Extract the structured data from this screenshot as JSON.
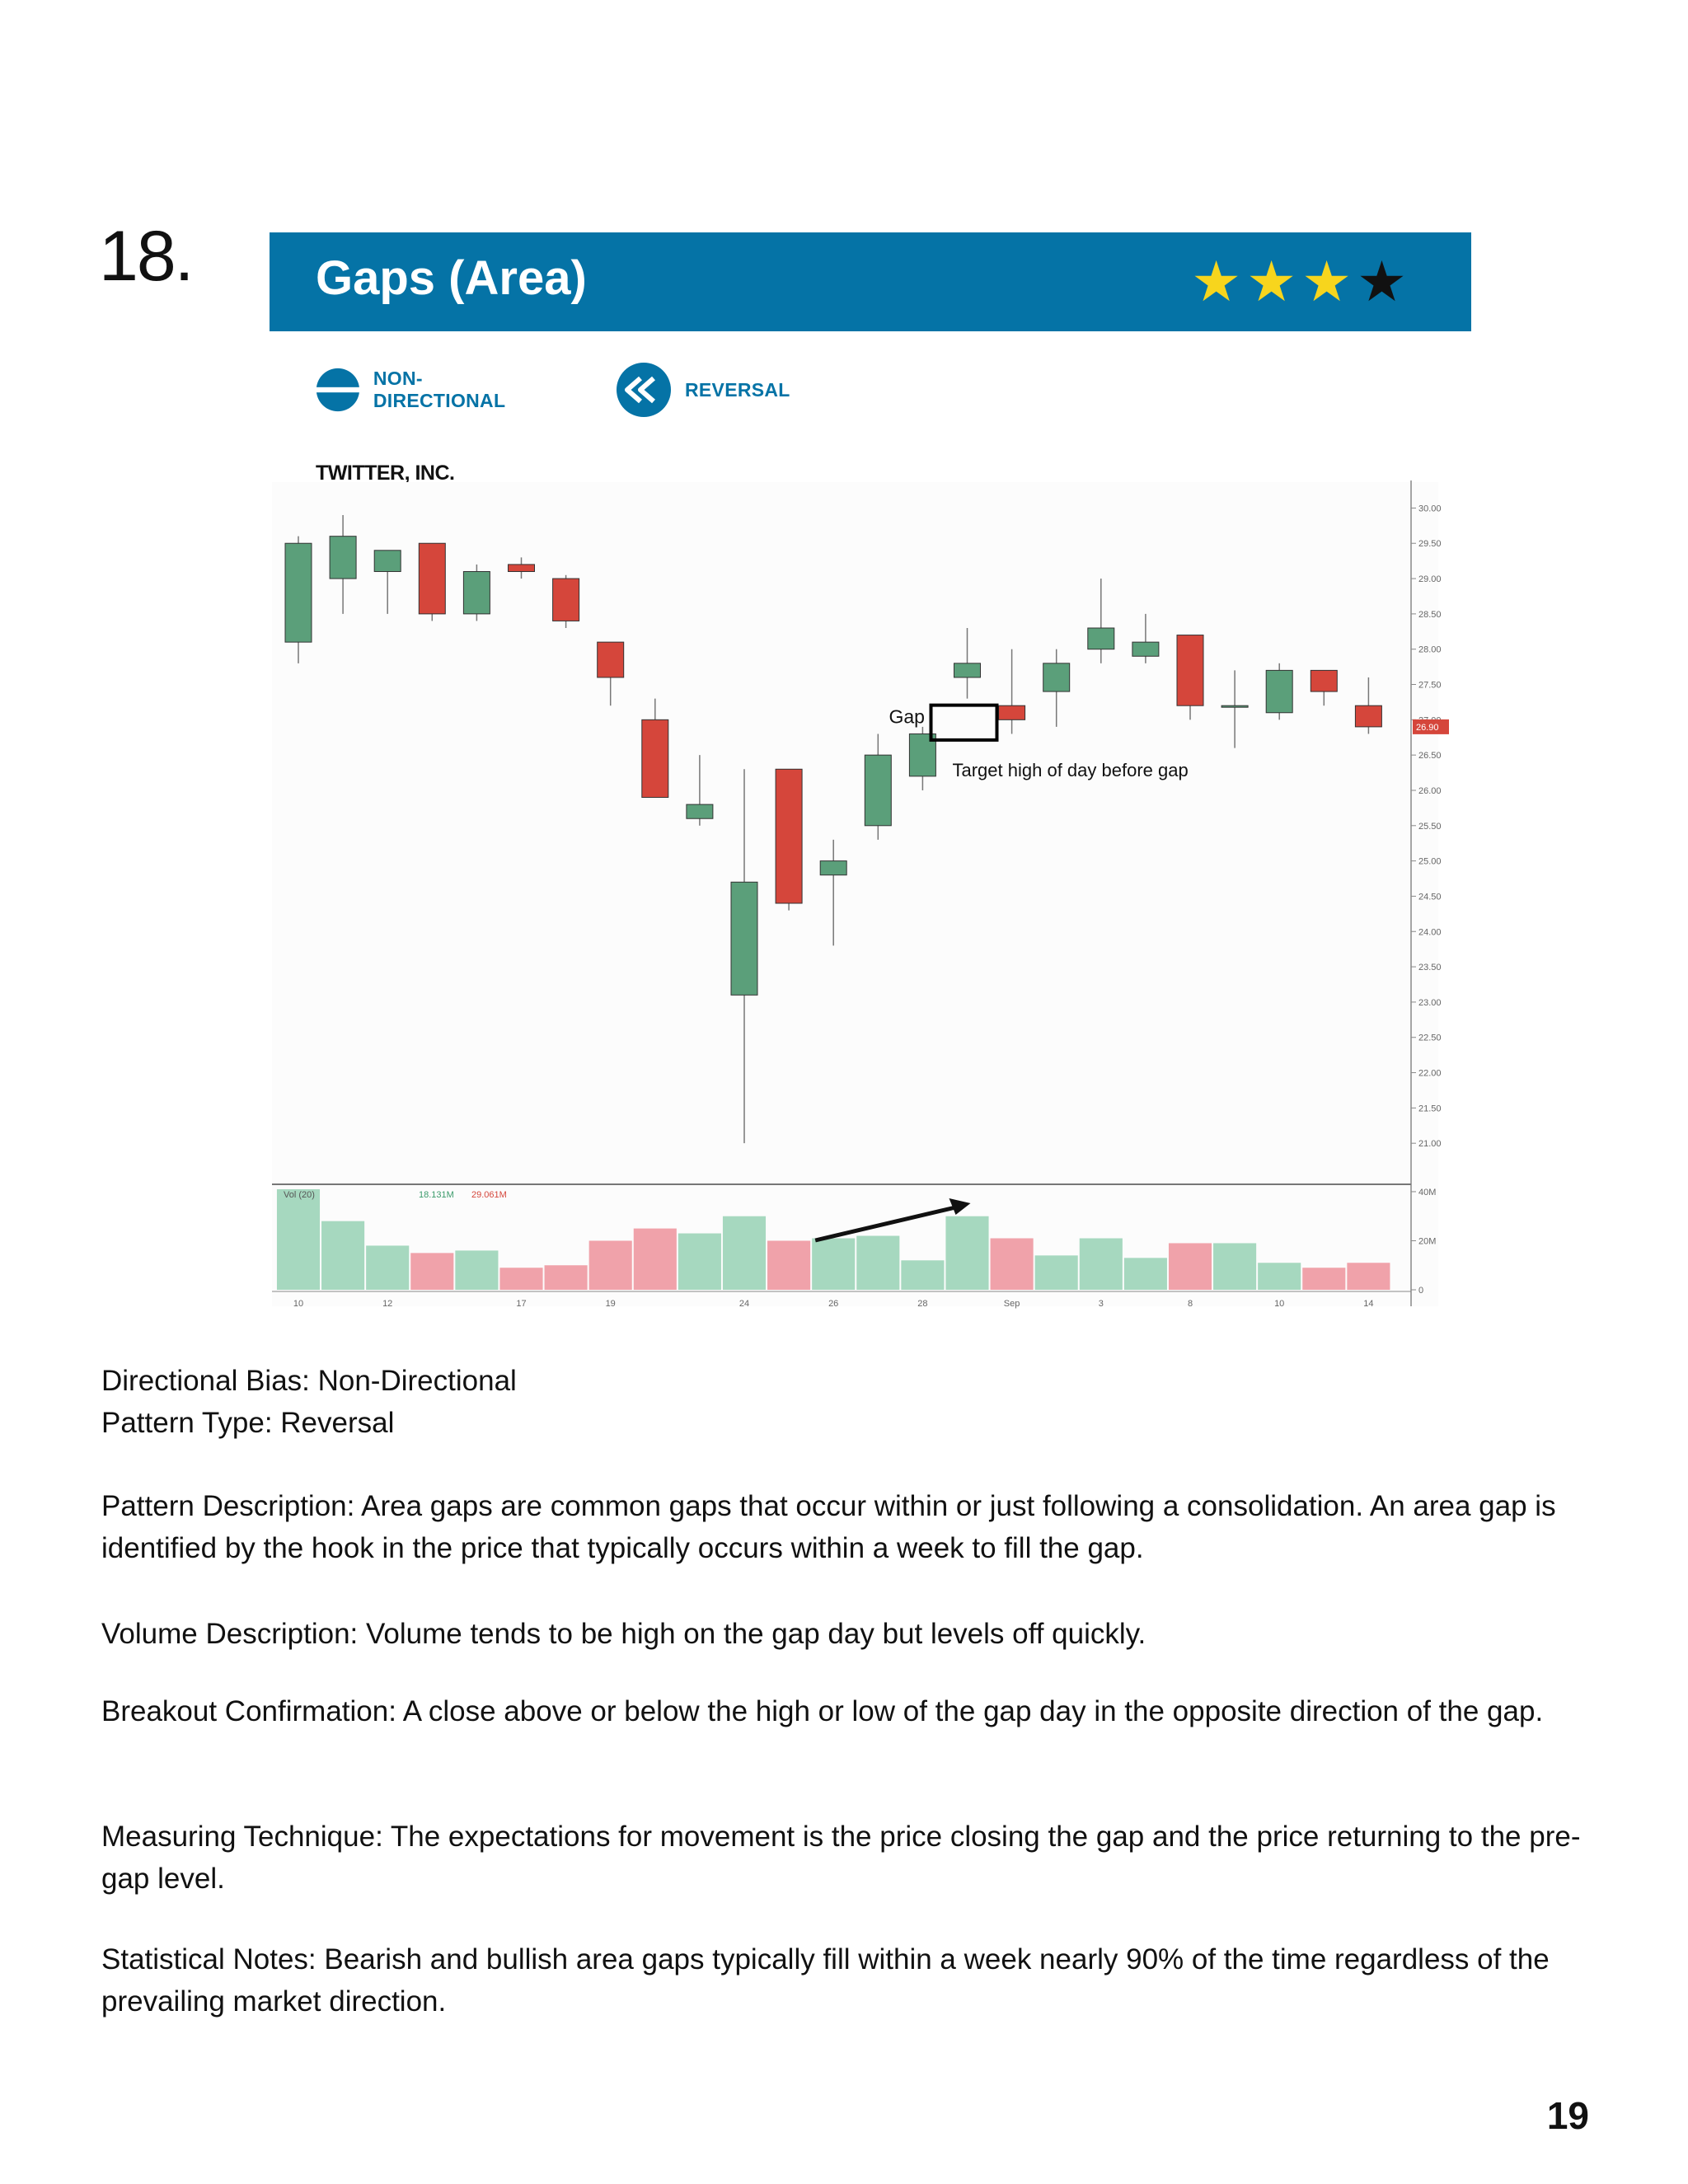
{
  "page_number_label": "18.",
  "banner": {
    "title": "Gaps (Area)",
    "rating": 4,
    "star_colors": [
      "#f7d51d",
      "#f7d51d",
      "#f7d51d",
      "#111111"
    ]
  },
  "badges": [
    {
      "label": "NON-DIRECTIONAL",
      "icon": "non-directional-icon"
    },
    {
      "label": "REVERSAL",
      "icon": "reversal-icon"
    }
  ],
  "chart_data": {
    "type": "candlestick",
    "title": "TWITTER, INC.",
    "up_color": "#5b9f7a",
    "down_color": "#d5463b",
    "ylim": [
      20.5,
      30.25
    ],
    "y_ticks": [
      "30.00",
      "29.50",
      "29.00",
      "28.50",
      "28.00",
      "27.50",
      "27.00",
      "26.50",
      "26.00",
      "25.50",
      "25.00",
      "24.50",
      "24.00",
      "23.50",
      "23.00",
      "22.50",
      "22.00",
      "21.50",
      "21.00"
    ],
    "last_price": "26.90",
    "x_tick_labels": [
      "10",
      "12",
      "17",
      "19",
      "24",
      "26",
      "28",
      "Sep",
      "3",
      "8",
      "10",
      "14"
    ],
    "candles": [
      {
        "o": 28.1,
        "h": 29.6,
        "l": 27.8,
        "c": 29.5
      },
      {
        "o": 29.0,
        "h": 29.9,
        "l": 28.5,
        "c": 29.6
      },
      {
        "o": 29.1,
        "h": 29.4,
        "l": 28.5,
        "c": 29.4
      },
      {
        "o": 29.5,
        "h": 29.5,
        "l": 28.4,
        "c": 28.5
      },
      {
        "o": 28.5,
        "h": 29.2,
        "l": 28.4,
        "c": 29.1
      },
      {
        "o": 29.2,
        "h": 29.3,
        "l": 29.0,
        "c": 29.1
      },
      {
        "o": 29.0,
        "h": 29.05,
        "l": 28.3,
        "c": 28.4
      },
      {
        "o": 28.1,
        "h": 28.1,
        "l": 27.2,
        "c": 27.6
      },
      {
        "o": 27.0,
        "h": 27.3,
        "l": 25.9,
        "c": 25.9
      },
      {
        "o": 25.6,
        "h": 26.5,
        "l": 25.5,
        "c": 25.8
      },
      {
        "o": 23.1,
        "h": 26.3,
        "l": 21.0,
        "c": 24.7
      },
      {
        "o": 26.3,
        "h": 26.3,
        "l": 24.3,
        "c": 24.4
      },
      {
        "o": 24.8,
        "h": 25.3,
        "l": 23.8,
        "c": 25.0
      },
      {
        "o": 25.5,
        "h": 26.8,
        "l": 25.3,
        "c": 26.5
      },
      {
        "o": 26.2,
        "h": 26.9,
        "l": 26.0,
        "c": 26.8
      },
      {
        "o": 27.6,
        "h": 28.3,
        "l": 27.3,
        "c": 27.8
      },
      {
        "o": 27.2,
        "h": 28.0,
        "l": 26.8,
        "c": 27.0
      },
      {
        "o": 27.4,
        "h": 28.0,
        "l": 26.9,
        "c": 27.8
      },
      {
        "o": 28.0,
        "h": 29.0,
        "l": 27.8,
        "c": 28.3
      },
      {
        "o": 27.9,
        "h": 28.5,
        "l": 27.8,
        "c": 28.1
      },
      {
        "o": 28.2,
        "h": 28.2,
        "l": 27.0,
        "c": 27.2
      },
      {
        "o": 27.2,
        "h": 27.7,
        "l": 26.6,
        "c": 27.2
      },
      {
        "o": 27.1,
        "h": 27.8,
        "l": 27.0,
        "c": 27.7
      },
      {
        "o": 27.7,
        "h": 27.7,
        "l": 27.2,
        "c": 27.4
      },
      {
        "o": 27.2,
        "h": 27.6,
        "l": 26.8,
        "c": 26.9
      }
    ],
    "gap_label": "Gap",
    "target_label": "Target high of day before gap",
    "volume": {
      "title": "Vol (20)",
      "value_green": "18.131M",
      "value_red": "29.061M",
      "ylim": [
        0,
        42
      ],
      "y_ticks": [
        "40M",
        "20M",
        "0"
      ],
      "bars": [
        {
          "v": 41,
          "up": true
        },
        {
          "v": 28,
          "up": true
        },
        {
          "v": 18,
          "up": true
        },
        {
          "v": 15,
          "up": false
        },
        {
          "v": 16,
          "up": true
        },
        {
          "v": 9,
          "up": false
        },
        {
          "v": 10,
          "up": false
        },
        {
          "v": 20,
          "up": false
        },
        {
          "v": 25,
          "up": false
        },
        {
          "v": 23,
          "up": true
        },
        {
          "v": 30,
          "up": true
        },
        {
          "v": 20,
          "up": false
        },
        {
          "v": 21,
          "up": true
        },
        {
          "v": 22,
          "up": true
        },
        {
          "v": 12,
          "up": true
        },
        {
          "v": 30,
          "up": true
        },
        {
          "v": 21,
          "up": false
        },
        {
          "v": 14,
          "up": true
        },
        {
          "v": 21,
          "up": true
        },
        {
          "v": 13,
          "up": true
        },
        {
          "v": 19,
          "up": false
        },
        {
          "v": 19,
          "up": true
        },
        {
          "v": 11,
          "up": true
        },
        {
          "v": 9,
          "up": false
        },
        {
          "v": 11,
          "up": false
        }
      ]
    }
  },
  "text": {
    "bias": "Directional Bias: Non-Directional",
    "type": "Pattern Type: Reversal",
    "description": "Pattern Description: Area gaps are common gaps that occur within or just following a consolidation. An area gap is identified by the hook in the price that typically occurs within a week to fill the gap.",
    "volume": "Volume Description: Volume tends to be high on the gap day but levels off quickly.",
    "breakout": "Breakout Confirmation: A close above or below the high or low of the gap day in the opposite direction of the gap.",
    "measuring": "Measuring Technique: The expectations for movement is the price closing the gap and the price returning to the pre-gap level.",
    "stats": "Statistical Notes: Bearish and bullish area gaps typically fill within a week nearly 90% of the time regardless of the prevailing market direction."
  },
  "footer_page": "19"
}
